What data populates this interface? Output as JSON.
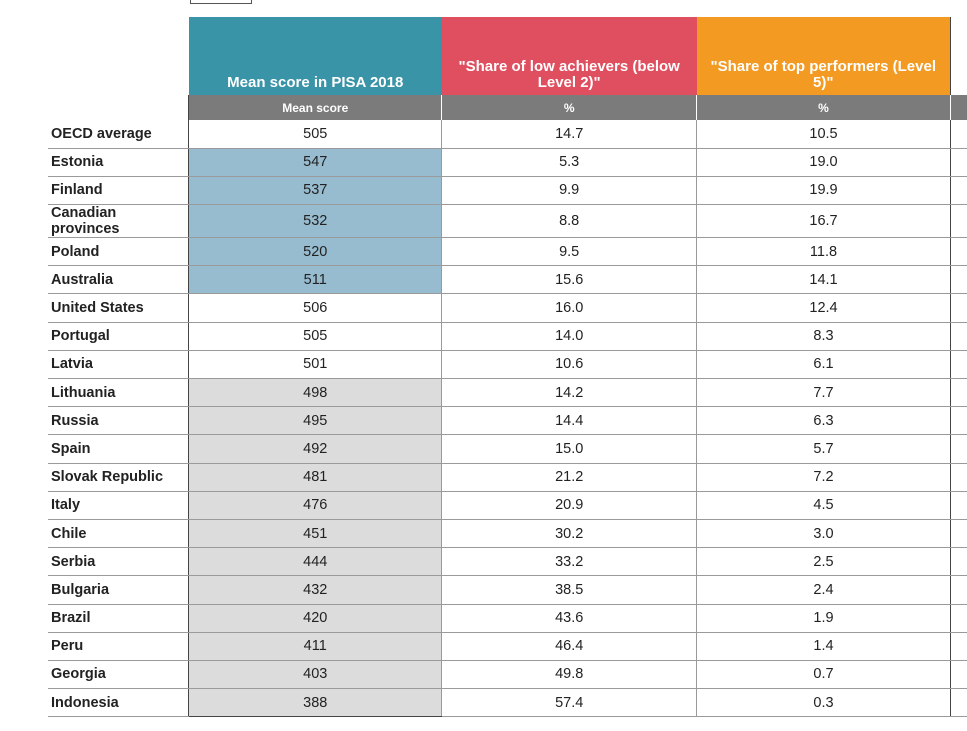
{
  "colors": {
    "mean_header": "#3a94a8",
    "low_header": "#e04f5f",
    "top_header": "#f39a23",
    "subheader": "#7b7b7b",
    "above_average": "#97bcd0",
    "below_average": "#dcdcdc"
  },
  "chart_data": {
    "type": "table",
    "columns": [
      {
        "key": "mean",
        "title": "Mean score in PISA 2018",
        "unit": "Mean score"
      },
      {
        "key": "low",
        "title": "\"Share of low achievers (below Level 2)\"",
        "unit": "%"
      },
      {
        "key": "top",
        "title": "\"Share of top performers (Level 5)\"",
        "unit": "%"
      }
    ],
    "rows": [
      {
        "country": "OECD average",
        "mean": "505",
        "low": "14.7",
        "top": "10.5",
        "shade": "avg"
      },
      {
        "country": "Estonia",
        "mean": "547",
        "low": "5.3",
        "top": "19.0",
        "shade": "above"
      },
      {
        "country": "Finland",
        "mean": "537",
        "low": "9.9",
        "top": "19.9",
        "shade": "above"
      },
      {
        "country": "Canadian provinces",
        "mean": "532",
        "low": "8.8",
        "top": "16.7",
        "shade": "above"
      },
      {
        "country": "Poland",
        "mean": "520",
        "low": "9.5",
        "top": "11.8",
        "shade": "above"
      },
      {
        "country": "Australia",
        "mean": "511",
        "low": "15.6",
        "top": "14.1",
        "shade": "above"
      },
      {
        "country": "United States",
        "mean": "506",
        "low": "16.0",
        "top": "12.4",
        "shade": "avg"
      },
      {
        "country": "Portugal",
        "mean": "505",
        "low": "14.0",
        "top": "8.3",
        "shade": "avg"
      },
      {
        "country": "Latvia",
        "mean": "501",
        "low": "10.6",
        "top": "6.1",
        "shade": "avg"
      },
      {
        "country": "Lithuania",
        "mean": "498",
        "low": "14.2",
        "top": "7.7",
        "shade": "below"
      },
      {
        "country": "Russia",
        "mean": "495",
        "low": "14.4",
        "top": "6.3",
        "shade": "below"
      },
      {
        "country": "Spain",
        "mean": "492",
        "low": "15.0",
        "top": "5.7",
        "shade": "below"
      },
      {
        "country": "Slovak Republic",
        "mean": "481",
        "low": "21.2",
        "top": "7.2",
        "shade": "below"
      },
      {
        "country": "Italy",
        "mean": "476",
        "low": "20.9",
        "top": "4.5",
        "shade": "below"
      },
      {
        "country": "Chile",
        "mean": "451",
        "low": "30.2",
        "top": "3.0",
        "shade": "below"
      },
      {
        "country": "Serbia",
        "mean": "444",
        "low": "33.2",
        "top": "2.5",
        "shade": "below"
      },
      {
        "country": "Bulgaria",
        "mean": "432",
        "low": "38.5",
        "top": "2.4",
        "shade": "below"
      },
      {
        "country": "Brazil",
        "mean": "420",
        "low": "43.6",
        "top": "1.9",
        "shade": "below"
      },
      {
        "country": "Peru",
        "mean": "411",
        "low": "46.4",
        "top": "1.4",
        "shade": "below"
      },
      {
        "country": "Georgia",
        "mean": "403",
        "low": "49.8",
        "top": "0.7",
        "shade": "below"
      },
      {
        "country": "Indonesia",
        "mean": "388",
        "low": "57.4",
        "top": "0.3",
        "shade": "below"
      }
    ]
  }
}
